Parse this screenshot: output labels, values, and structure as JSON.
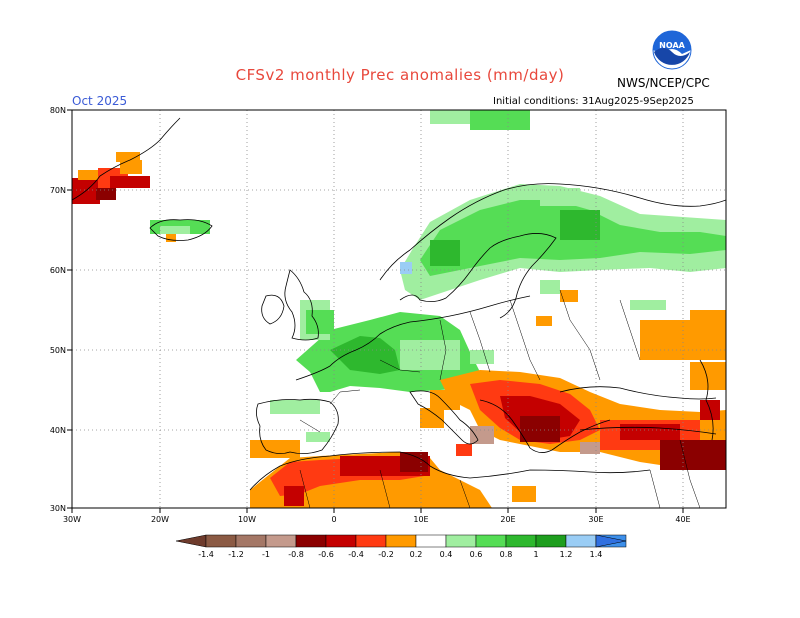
{
  "header": {
    "title": "CFSv2 monthly Prec anomalies (mm/day)",
    "month": "Oct 2025",
    "agency": "NWS/NCEP/CPC",
    "initial_conditions": "Initial conditions: 31Aug2025-9Sep2025",
    "logo_text": "NOAA"
  },
  "axes": {
    "lat_labels": [
      "80N",
      "70N",
      "60N",
      "50N",
      "40N",
      "30N"
    ],
    "lon_labels": [
      "30W",
      "20W",
      "10W",
      "0",
      "10E",
      "20E",
      "30E",
      "40E"
    ]
  },
  "colorbar": {
    "labels": [
      "-1.4",
      "-1.2",
      "-1",
      "-0.8",
      "-0.6",
      "-0.4",
      "-0.2",
      "0.2",
      "0.4",
      "0.6",
      "0.8",
      "1",
      "1.2",
      "1.4"
    ],
    "colors": [
      "#8b5a44",
      "#a47766",
      "#c49a8c",
      "#8b0000",
      "#c40000",
      "#ff3a12",
      "#ff9a00",
      "#ffffff",
      "#a0eea0",
      "#55dd55",
      "#2eb82e",
      "#1e9e1e",
      "#9acdf5",
      "#3d8fea"
    ],
    "end_left_color": "#6e3b2c",
    "end_right_color": "#3070e0"
  },
  "colors": {
    "title": "#e8483c",
    "month": "#3b5bd6",
    "noaa_blue": "#1f66d8"
  }
}
